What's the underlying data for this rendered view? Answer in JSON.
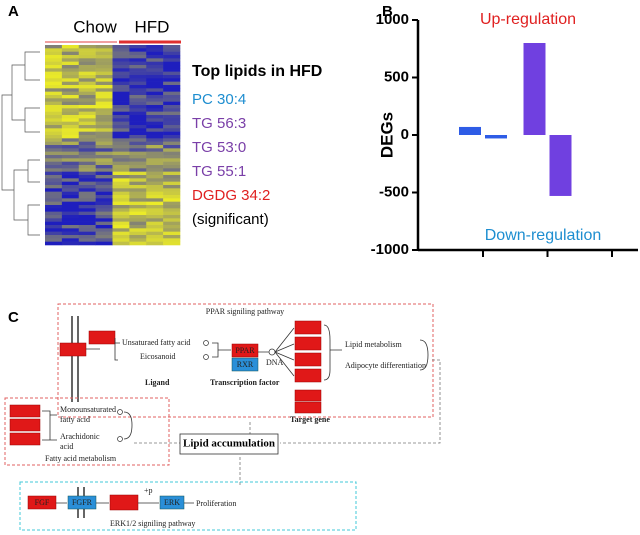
{
  "panel_a": {
    "label": "A",
    "groups": [
      "Chow",
      "HFD"
    ],
    "heading": "Top lipids in HFD",
    "lipids": [
      {
        "text": "PC 30:4",
        "color": "#1e8ed0"
      },
      {
        "text": "TG 56:3",
        "color": "#7a3fa8"
      },
      {
        "text": "TG 53:0",
        "color": "#7a3fa8"
      },
      {
        "text": "TG 55:1",
        "color": "#7a3fa8"
      },
      {
        "text": "DGDG 34:2",
        "color": "#e02020"
      }
    ],
    "note": "(significant)"
  },
  "chart_data": {
    "type": "bar",
    "label": "B",
    "y_label": "DEGs",
    "annotations": [
      {
        "text": "Up-regulation",
        "color": "#e02020"
      },
      {
        "text": "Down-regulation",
        "color": "#1e8ed0"
      }
    ],
    "categories": [
      null,
      null,
      null
    ],
    "group_colors": [
      "#2e5ce6",
      "#7040e0"
    ],
    "series": [
      {
        "values": [
          70,
          800,
          null
        ]
      },
      {
        "values": [
          -30,
          -530,
          null
        ]
      }
    ],
    "ylim": [
      -1000,
      1000
    ],
    "yticks": [
      -1000,
      -500,
      0,
      500,
      1000
    ]
  },
  "panel_c": {
    "label": "C",
    "ppar_title": "PPAR signiling pathway",
    "ligands": [
      "Unsaturaed fatty acid",
      "Eicosanoid"
    ],
    "ligand_label": "Ligand",
    "tf": [
      "PPAR",
      "RXR"
    ],
    "tf_label": "Transcription factor",
    "dna": "DNA",
    "outcomes": [
      "Lipid metabolism",
      "Adipocyte differentiation"
    ],
    "target_label": "Target gene",
    "fa_items": [
      "Monounsaturated",
      "fatty acid",
      "Arachidonic",
      "acid"
    ],
    "fa_title": "Fatty acid metabolism",
    "center": "Lipid accumulation",
    "erk_title": "ERK1/2 signiling pathway",
    "erk_nodes": [
      "FGF",
      "FGFR",
      "ERK"
    ],
    "phospho": "+p",
    "proliferation": "Proliferation"
  }
}
